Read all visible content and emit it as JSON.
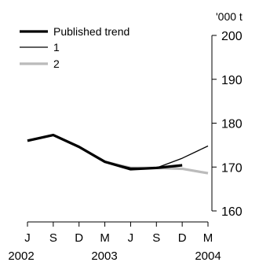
{
  "chart_data": {
    "type": "line",
    "unit_label": "'000 t",
    "categories": [
      "J",
      "S",
      "D",
      "M",
      "J",
      "S",
      "D",
      "M"
    ],
    "year_labels": [
      "2002",
      "2003",
      "2004"
    ],
    "ylim": [
      160,
      200
    ],
    "y_ticks": [
      160,
      170,
      180,
      190,
      200
    ],
    "legend_position": "top-left",
    "grid": false,
    "series": [
      {
        "name": "Published trend",
        "color": "#000000",
        "values": [
          176.0,
          177.3,
          174.6,
          171.2,
          169.5,
          169.8,
          170.4,
          null
        ]
      },
      {
        "name": "1",
        "color": "#000000",
        "values": [
          176.0,
          177.3,
          174.6,
          171.2,
          169.8,
          169.8,
          172.0,
          174.8
        ]
      },
      {
        "name": "2",
        "color": "#bbbbbb",
        "values": [
          176.0,
          177.3,
          174.6,
          171.2,
          169.8,
          169.8,
          169.6,
          168.6
        ]
      }
    ]
  }
}
